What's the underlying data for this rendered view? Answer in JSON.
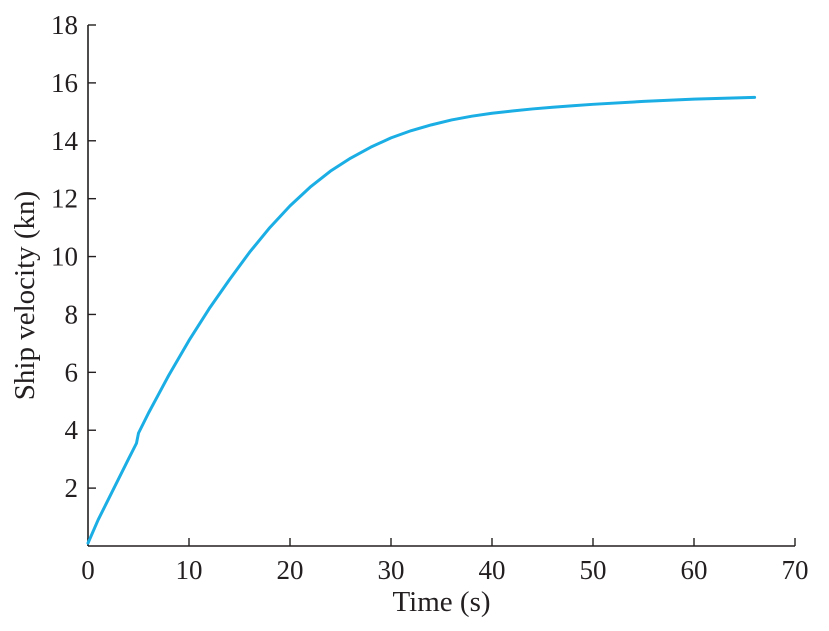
{
  "chart_data": {
    "type": "line",
    "xlabel": "Time (s)",
    "ylabel": "Ship velocity (kn)",
    "xlim": [
      0,
      70
    ],
    "ylim": [
      0,
      18
    ],
    "xticks": [
      0,
      10,
      20,
      30,
      40,
      50,
      60,
      70
    ],
    "yticks": [
      2,
      4,
      6,
      8,
      10,
      12,
      14,
      16,
      18
    ],
    "x_tick_labels": [
      "0",
      "10",
      "20",
      "30",
      "40",
      "50",
      "60",
      "70"
    ],
    "y_tick_labels": [
      "2",
      "4",
      "6",
      "8",
      "10",
      "12",
      "14",
      "16",
      "18"
    ],
    "grid": false,
    "series": [
      {
        "color": "#1aaee5",
        "x": [
          0,
          1,
          2,
          3,
          4,
          4.8,
          5,
          6,
          7,
          8,
          10,
          12,
          14,
          16,
          18,
          20,
          22,
          24,
          26,
          28,
          30,
          32,
          34,
          36,
          38,
          40,
          42,
          44,
          46,
          48,
          50,
          55,
          60,
          66
        ],
        "y": [
          0.1,
          0.9,
          1.6,
          2.3,
          3.0,
          3.55,
          3.9,
          4.6,
          5.25,
          5.9,
          7.1,
          8.2,
          9.2,
          10.15,
          11.0,
          11.75,
          12.4,
          12.95,
          13.4,
          13.78,
          14.1,
          14.35,
          14.55,
          14.72,
          14.85,
          14.95,
          15.03,
          15.1,
          15.16,
          15.21,
          15.26,
          15.36,
          15.44,
          15.5
        ]
      }
    ]
  }
}
